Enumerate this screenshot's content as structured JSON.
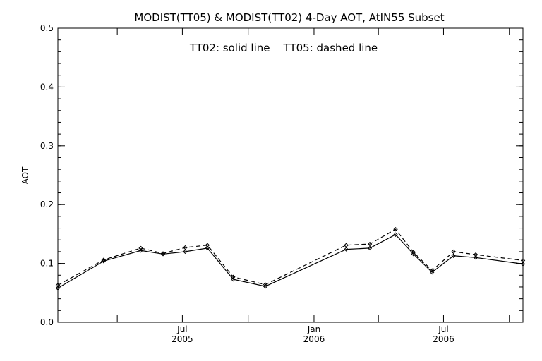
{
  "chart_data": {
    "type": "line",
    "title": "MODIST(TT05) & MODIST(TT02) 4-Day AOT, AtIN55 Subset",
    "annotation": "TT02: solid line    TT05: dashed line",
    "xlabel": "",
    "ylabel": "AOT",
    "xlim": [
      "2005-01-08",
      "2006-10-20"
    ],
    "ylim": [
      0.0,
      0.5
    ],
    "y_ticks": [
      "0.0",
      "0.1",
      "0.2",
      "0.3",
      "0.4",
      "0.5"
    ],
    "x_major_ticks": [
      {
        "date": "2005-07-01",
        "label": "Jul",
        "year": "2005"
      },
      {
        "date": "2006-01-01",
        "label": "Jan",
        "year": "2006"
      },
      {
        "date": "2006-07-01",
        "label": "Jul",
        "year": "2006"
      }
    ],
    "x_minor_ticks": [
      "2005-04-01",
      "2005-10-01",
      "2006-04-01",
      "2006-10-01"
    ],
    "grid": false,
    "legend": "none",
    "series": [
      {
        "name": "TT02",
        "line_style": "solid",
        "color": "#000000",
        "x": [
          "2005-01-08",
          "2005-03-13",
          "2005-05-04",
          "2005-06-04",
          "2005-07-05",
          "2005-08-05",
          "2005-09-10",
          "2005-10-25",
          "2006-02-15",
          "2006-03-20",
          "2006-04-25",
          "2006-05-20",
          "2006-06-15",
          "2006-07-15",
          "2006-08-15",
          "2006-10-20"
        ],
        "y": [
          0.058,
          0.104,
          0.122,
          0.116,
          0.12,
          0.126,
          0.073,
          0.061,
          0.124,
          0.126,
          0.149,
          0.116,
          0.085,
          0.113,
          0.11,
          0.099
        ]
      },
      {
        "name": "TT05",
        "line_style": "dashed",
        "color": "#000000",
        "x": [
          "2005-01-08",
          "2005-03-13",
          "2005-05-04",
          "2005-06-04",
          "2005-07-05",
          "2005-08-05",
          "2005-09-10",
          "2005-10-25",
          "2006-02-15",
          "2006-03-20",
          "2006-04-25",
          "2006-05-20",
          "2006-06-15",
          "2006-07-15",
          "2006-08-15",
          "2006-10-20"
        ],
        "y": [
          0.063,
          0.106,
          0.126,
          0.117,
          0.127,
          0.131,
          0.077,
          0.064,
          0.131,
          0.133,
          0.158,
          0.119,
          0.088,
          0.12,
          0.115,
          0.105
        ]
      }
    ]
  }
}
